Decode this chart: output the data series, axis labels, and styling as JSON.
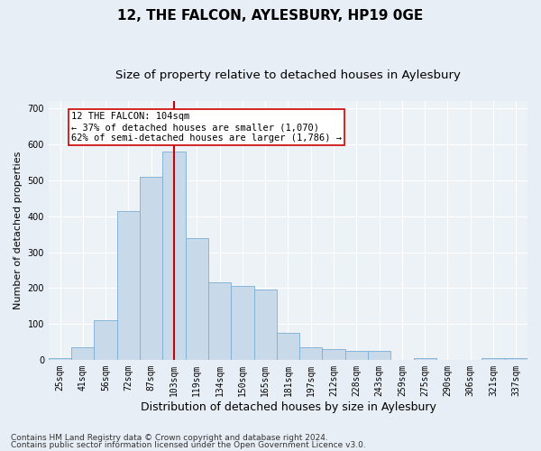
{
  "title1": "12, THE FALCON, AYLESBURY, HP19 0GE",
  "title2": "Size of property relative to detached houses in Aylesbury",
  "xlabel": "Distribution of detached houses by size in Aylesbury",
  "ylabel": "Number of detached properties",
  "categories": [
    "25sqm",
    "41sqm",
    "56sqm",
    "72sqm",
    "87sqm",
    "103sqm",
    "119sqm",
    "134sqm",
    "150sqm",
    "165sqm",
    "181sqm",
    "197sqm",
    "212sqm",
    "228sqm",
    "243sqm",
    "259sqm",
    "275sqm",
    "290sqm",
    "306sqm",
    "321sqm",
    "337sqm"
  ],
  "values": [
    5,
    35,
    110,
    415,
    510,
    580,
    340,
    215,
    205,
    195,
    75,
    35,
    30,
    25,
    25,
    0,
    5,
    0,
    0,
    5,
    5
  ],
  "bar_color": "#c8daea",
  "bar_edge_color": "#7bafd4",
  "red_line_x": 5.0,
  "annotation_line1": "12 THE FALCON: 104sqm",
  "annotation_line2": "← 37% of detached houses are smaller (1,070)",
  "annotation_line3": "62% of semi-detached houses are larger (1,786) →",
  "annotation_box_color": "#ffffff",
  "annotation_box_edge": "#cc0000",
  "ylim": [
    0,
    720
  ],
  "yticks": [
    0,
    100,
    200,
    300,
    400,
    500,
    600,
    700
  ],
  "footnote1": "Contains HM Land Registry data © Crown copyright and database right 2024.",
  "footnote2": "Contains public sector information licensed under the Open Government Licence v3.0.",
  "bg_color": "#e8eef5",
  "plot_bg_color": "#edf2f7",
  "grid_color": "#ffffff",
  "title1_fontsize": 11,
  "title2_fontsize": 9.5,
  "xlabel_fontsize": 9,
  "ylabel_fontsize": 8,
  "tick_fontsize": 7,
  "annot_fontsize": 7.5,
  "footnote_fontsize": 6.5
}
